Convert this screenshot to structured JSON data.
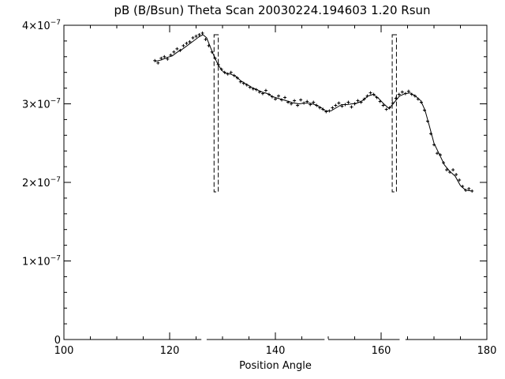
{
  "chart_data": {
    "type": "scatter",
    "title": "pB (B/Bsun) Theta Scan 20030224.194603 1.20 Rsun",
    "xlabel": "Position Angle",
    "ylabel": "",
    "xlim": [
      100,
      180
    ],
    "ylim": [
      0,
      4e-07
    ],
    "x_ticks": [
      100,
      120,
      140,
      160,
      180
    ],
    "x_tick_labels": [
      "100",
      "120",
      "140",
      "160",
      "180"
    ],
    "y_ticks": [
      0,
      1e-07,
      2e-07,
      3e-07,
      4e-07
    ],
    "y_tick_labels": [
      {
        "base": "0",
        "exp": ""
      },
      {
        "base": "1×10",
        "exp": "−7"
      },
      {
        "base": "2×10",
        "exp": "−7"
      },
      {
        "base": "3×10",
        "exp": "−7"
      },
      {
        "base": "4×10",
        "exp": "−7"
      }
    ],
    "grid": false,
    "series": [
      {
        "style": "points",
        "marker": "plus",
        "color": "#000000",
        "x": [
          117.2,
          117.8,
          118.4,
          119.0,
          119.6,
          120.2,
          120.8,
          121.4,
          122.0,
          122.6,
          123.2,
          123.8,
          124.4,
          125.0,
          125.6,
          126.2,
          126.8,
          127.4,
          128.0,
          128.6,
          129.2,
          129.8,
          130.4,
          131.0,
          131.6,
          132.2,
          132.8,
          133.4,
          134.0,
          134.6,
          135.2,
          135.8,
          136.4,
          137.0,
          137.6,
          138.2,
          138.8,
          139.4,
          140.0,
          140.6,
          141.2,
          141.8,
          142.4,
          143.0,
          143.6,
          144.2,
          144.8,
          145.4,
          146.0,
          146.6,
          147.2,
          147.8,
          148.4,
          149.0,
          149.6,
          150.2,
          150.8,
          151.4,
          152.0,
          152.6,
          153.2,
          153.8,
          154.4,
          155.0,
          155.6,
          156.2,
          156.8,
          157.4,
          158.0,
          158.6,
          159.2,
          159.8,
          160.4,
          161.0,
          161.6,
          162.2,
          162.8,
          163.4,
          164.0,
          164.6,
          165.2,
          165.8,
          166.4,
          167.0,
          167.6,
          168.2,
          168.8,
          169.4,
          170.0,
          170.6,
          171.2,
          171.8,
          172.4,
          173.0,
          173.6,
          174.2,
          174.8,
          175.4,
          176.0,
          176.6,
          177.2
        ],
        "y": [
          3.55e-07,
          3.52e-07,
          3.58e-07,
          3.6e-07,
          3.57e-07,
          3.62e-07,
          3.66e-07,
          3.7e-07,
          3.68e-07,
          3.74e-07,
          3.77e-07,
          3.79e-07,
          3.84e-07,
          3.86e-07,
          3.88e-07,
          3.9e-07,
          3.82e-07,
          3.74e-07,
          3.66e-07,
          3.58e-07,
          3.5e-07,
          3.44e-07,
          3.4e-07,
          3.38e-07,
          3.4e-07,
          3.36e-07,
          3.33e-07,
          3.28e-07,
          3.26e-07,
          3.24e-07,
          3.21e-07,
          3.19e-07,
          3.18e-07,
          3.15e-07,
          3.13e-07,
          3.17e-07,
          3.12e-07,
          3.09e-07,
          3.06e-07,
          3.1e-07,
          3.05e-07,
          3.08e-07,
          3.02e-07,
          3e-07,
          3.04e-07,
          2.98e-07,
          3.05e-07,
          3.01e-07,
          3.03e-07,
          2.99e-07,
          3.02e-07,
          2.98e-07,
          2.95e-07,
          2.93e-07,
          2.9e-07,
          2.91e-07,
          2.95e-07,
          2.98e-07,
          3.01e-07,
          2.97e-07,
          2.99e-07,
          3.02e-07,
          2.96e-07,
          3e-07,
          3.04e-07,
          3.02e-07,
          3.06e-07,
          3.1e-07,
          3.14e-07,
          3.12e-07,
          3.08e-07,
          3.03e-07,
          2.98e-07,
          2.93e-07,
          2.95e-07,
          3.01e-07,
          3.07e-07,
          3.12e-07,
          3.15e-07,
          3.13e-07,
          3.16e-07,
          3.12e-07,
          3.1e-07,
          3.06e-07,
          3.02e-07,
          2.92e-07,
          2.78e-07,
          2.62e-07,
          2.48e-07,
          2.37e-07,
          2.35e-07,
          2.25e-07,
          2.16e-07,
          2.13e-07,
          2.16e-07,
          2.1e-07,
          2.03e-07,
          1.95e-07,
          1.9e-07,
          1.92e-07,
          1.89e-07
        ]
      },
      {
        "style": "line",
        "color": "#000000",
        "x": [
          117.2,
          118.5,
          119.5,
          120.5,
          121.5,
          122.5,
          123.5,
          124.5,
          125.5,
          126.3,
          127.0,
          127.6,
          128.2,
          129.0,
          129.8,
          130.5,
          131.5,
          132.5,
          133.5,
          134.5,
          135.5,
          136.5,
          137.5,
          138.5,
          139.5,
          140.5,
          141.5,
          142.5,
          143.5,
          144.5,
          145.5,
          146.5,
          147.5,
          148.5,
          149.5,
          150.5,
          151.5,
          152.5,
          153.5,
          154.5,
          155.5,
          156.5,
          157.5,
          158.5,
          159.5,
          160.5,
          161.5,
          162.5,
          163.5,
          164.5,
          165.5,
          166.5,
          167.5,
          168.3,
          169.0,
          170.0,
          171.0,
          172.0,
          173.0,
          174.0,
          175.0,
          176.0,
          177.2
        ],
        "y": [
          3.54e-07,
          3.56e-07,
          3.59e-07,
          3.61e-07,
          3.66e-07,
          3.7e-07,
          3.75e-07,
          3.8e-07,
          3.85e-07,
          3.88e-07,
          3.84e-07,
          3.74e-07,
          3.64e-07,
          3.52e-07,
          3.43e-07,
          3.39e-07,
          3.38e-07,
          3.35e-07,
          3.29e-07,
          3.25e-07,
          3.21e-07,
          3.18e-07,
          3.15e-07,
          3.13e-07,
          3.09e-07,
          3.07e-07,
          3.05e-07,
          3.03e-07,
          3.01e-07,
          3e-07,
          3.01e-07,
          3.01e-07,
          2.99e-07,
          2.96e-07,
          2.91e-07,
          2.91e-07,
          2.95e-07,
          2.99e-07,
          2.99e-07,
          3e-07,
          3.01e-07,
          3.04e-07,
          3.1e-07,
          3.12e-07,
          3.07e-07,
          3e-07,
          2.94e-07,
          3.02e-07,
          3.1e-07,
          3.13e-07,
          3.14e-07,
          3.1e-07,
          3.04e-07,
          2.92e-07,
          2.75e-07,
          2.5e-07,
          2.36e-07,
          2.22e-07,
          2.14e-07,
          2.08e-07,
          1.96e-07,
          1.9e-07,
          1.89e-07
        ]
      }
    ],
    "markers": [
      {
        "style": "dashed-rectangle",
        "x": [
          128.4,
          129.2
        ],
        "y": [
          1.88e-07,
          3.88e-07
        ]
      },
      {
        "style": "dashed-rectangle",
        "x": [
          162.1,
          162.9
        ],
        "y": [
          1.88e-07,
          3.88e-07
        ]
      }
    ],
    "axis_gaps": [
      [
        126.0,
        127.0
      ],
      [
        149.3,
        150.0
      ],
      [
        163.5,
        164.6
      ]
    ]
  }
}
